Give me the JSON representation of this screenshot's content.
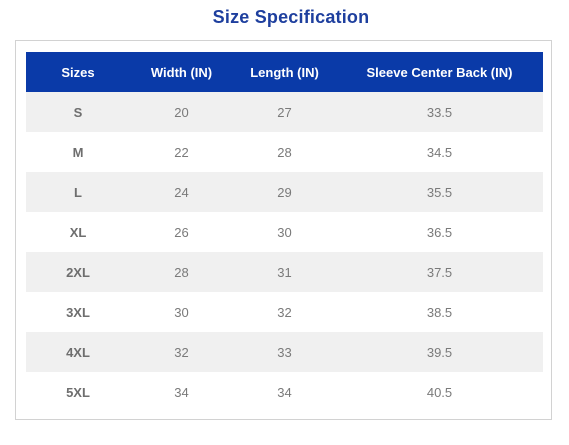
{
  "title": "Size Specification",
  "table": {
    "headers": [
      "Sizes",
      "Width (IN)",
      "Length (IN)",
      "Sleeve Center Back (IN)"
    ],
    "rows": [
      [
        "S",
        "20",
        "27",
        "33.5"
      ],
      [
        "M",
        "22",
        "28",
        "34.5"
      ],
      [
        "L",
        "24",
        "29",
        "35.5"
      ],
      [
        "XL",
        "26",
        "30",
        "36.5"
      ],
      [
        "2XL",
        "28",
        "31",
        "37.5"
      ],
      [
        "3XL",
        "30",
        "32",
        "38.5"
      ],
      [
        "4XL",
        "32",
        "33",
        "39.5"
      ],
      [
        "5XL",
        "34",
        "34",
        "40.5"
      ]
    ]
  },
  "colors": {
    "title": "#1e3f9e",
    "header_bg": "#0a3aa8",
    "header_text": "#ffffff",
    "row_shaded": "#f0f0f0",
    "cell_text": "#7a7a7a",
    "frame_border": "#d2d2d2"
  }
}
